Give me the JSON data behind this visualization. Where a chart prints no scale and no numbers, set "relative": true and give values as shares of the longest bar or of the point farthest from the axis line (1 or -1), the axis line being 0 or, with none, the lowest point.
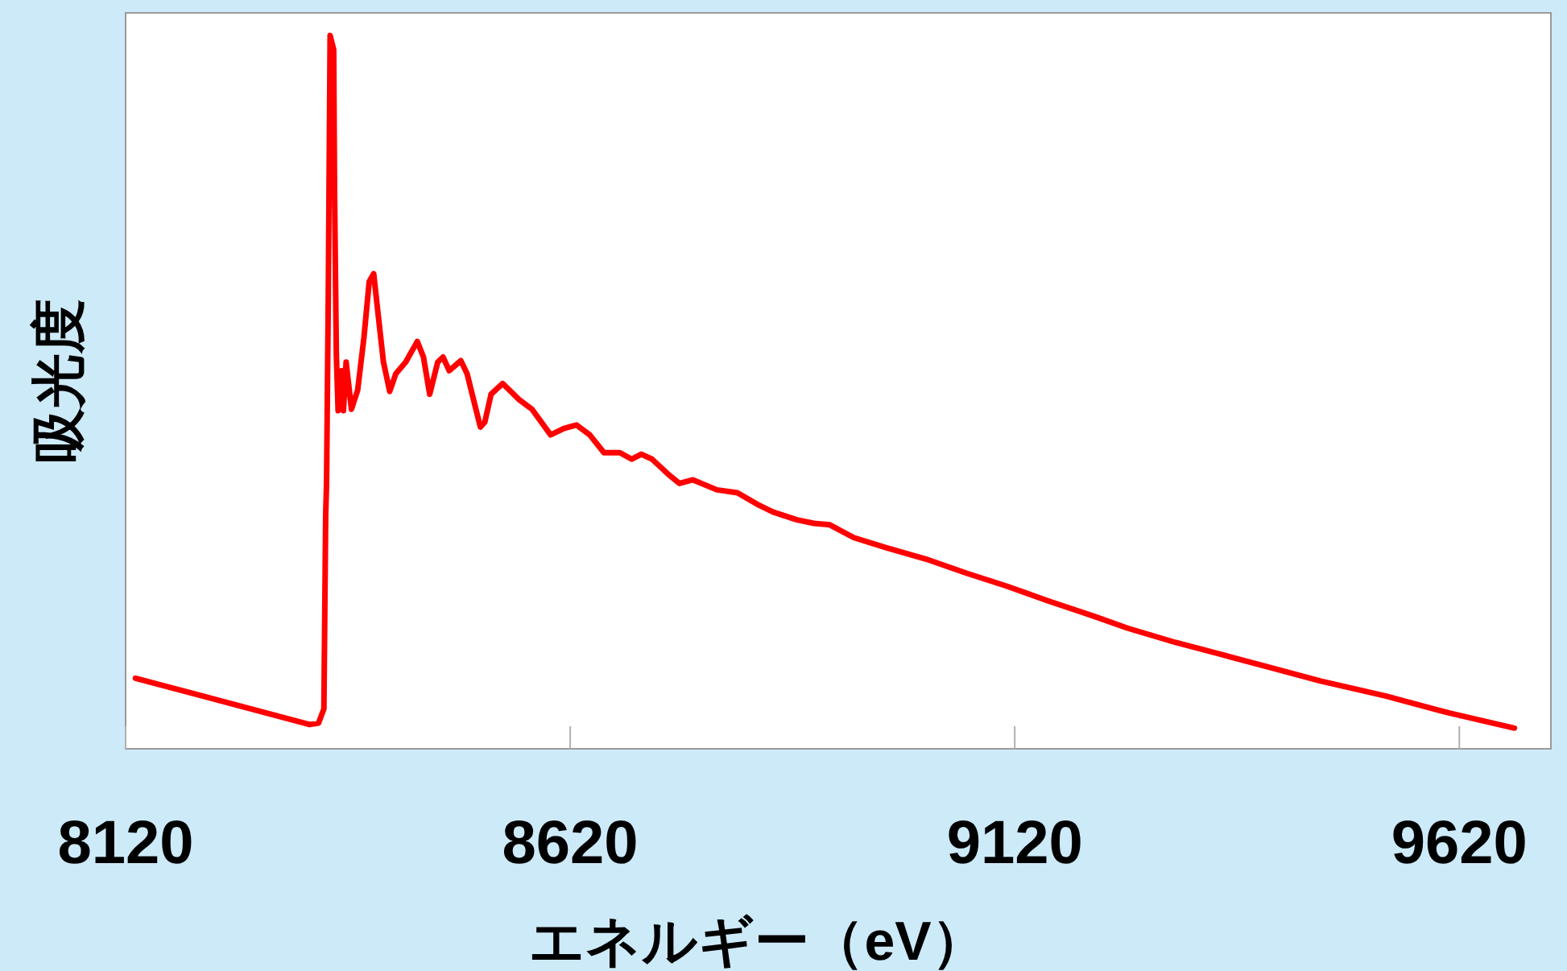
{
  "chart_data": {
    "type": "line",
    "xlabel": "エネルギー（eV）",
    "ylabel": "吸光度",
    "relative": true,
    "xlim": [
      8120,
      9723
    ],
    "xticks": [
      8120,
      8620,
      9120,
      9620
    ],
    "series": [
      {
        "color": "#ff0000",
        "x": [
          8131,
          8327,
          8337,
          8343,
          8345,
          8346,
          8348,
          8350,
          8354,
          8355,
          8357,
          8359,
          8363,
          8365,
          8368,
          8374,
          8381,
          8388,
          8394,
          8399,
          8404,
          8410,
          8417,
          8424,
          8435,
          8448,
          8455,
          8462,
          8471,
          8477,
          8484,
          8497,
          8504,
          8519,
          8524,
          8531,
          8544,
          8562,
          8577,
          8598,
          8613,
          8627,
          8642,
          8658,
          8676,
          8689,
          8700,
          8712,
          8731,
          8743,
          8758,
          8785,
          8808,
          8830,
          8848,
          8875,
          8894,
          8912,
          8939,
          8975,
          9020,
          9066,
          9111,
          9156,
          9211,
          9247,
          9301,
          9356,
          9410,
          9464,
          9537,
          9609,
          9682
        ],
        "values": [
          0.099,
          0.034,
          0.036,
          0.056,
          0.327,
          0.372,
          0.643,
          1.0,
          0.98,
          0.779,
          0.553,
          0.474,
          0.53,
          0.474,
          0.542,
          0.476,
          0.503,
          0.576,
          0.655,
          0.666,
          0.609,
          0.542,
          0.501,
          0.526,
          0.542,
          0.571,
          0.549,
          0.497,
          0.542,
          0.549,
          0.53,
          0.544,
          0.526,
          0.451,
          0.458,
          0.497,
          0.512,
          0.49,
          0.476,
          0.44,
          0.449,
          0.454,
          0.44,
          0.415,
          0.415,
          0.406,
          0.413,
          0.406,
          0.384,
          0.372,
          0.377,
          0.363,
          0.359,
          0.343,
          0.332,
          0.321,
          0.316,
          0.314,
          0.296,
          0.282,
          0.266,
          0.246,
          0.228,
          0.208,
          0.185,
          0.169,
          0.149,
          0.131,
          0.113,
          0.095,
          0.074,
          0.05,
          0.029
        ]
      }
    ]
  }
}
